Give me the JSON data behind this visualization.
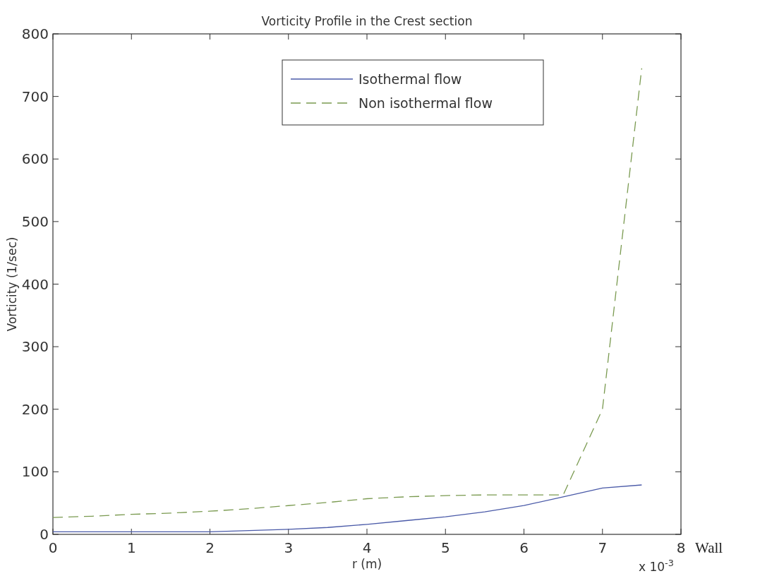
{
  "chart_data": {
    "type": "line",
    "title": "Vorticity Profile in the Crest section",
    "xlabel": "r (m)",
    "ylabel": "Vorticity (1/sec)",
    "annotations": [
      "x 10$^{-3}$",
      "Wall"
    ],
    "x": [
      0,
      0.5,
      1,
      1.5,
      2,
      2.5,
      3,
      3.5,
      4,
      4.5,
      5,
      5.5,
      6,
      6.5,
      7,
      7.5
    ],
    "series": [
      {
        "name": "Isothermal flow",
        "color": "#4a5aa8",
        "line_style": "solid",
        "values": [
          4,
          4,
          4,
          4,
          4,
          6,
          8,
          11,
          16,
          22,
          28,
          36,
          46,
          60,
          74,
          79
        ]
      },
      {
        "name": "Non isothermal flow",
        "color": "#7a9a50",
        "line_style": "dashed",
        "values": [
          27,
          29,
          32,
          34,
          37,
          41,
          46,
          51,
          57,
          60,
          62,
          63,
          63,
          63,
          200,
          745
        ]
      }
    ],
    "xlim": [
      0,
      8
    ],
    "xticks": [
      0,
      1,
      2,
      3,
      4,
      5,
      6,
      7,
      8
    ],
    "ylim": [
      0,
      800
    ],
    "yticks": [
      0,
      100,
      200,
      300,
      400,
      500,
      600,
      700,
      800
    ],
    "grid": false,
    "legend": "top"
  }
}
